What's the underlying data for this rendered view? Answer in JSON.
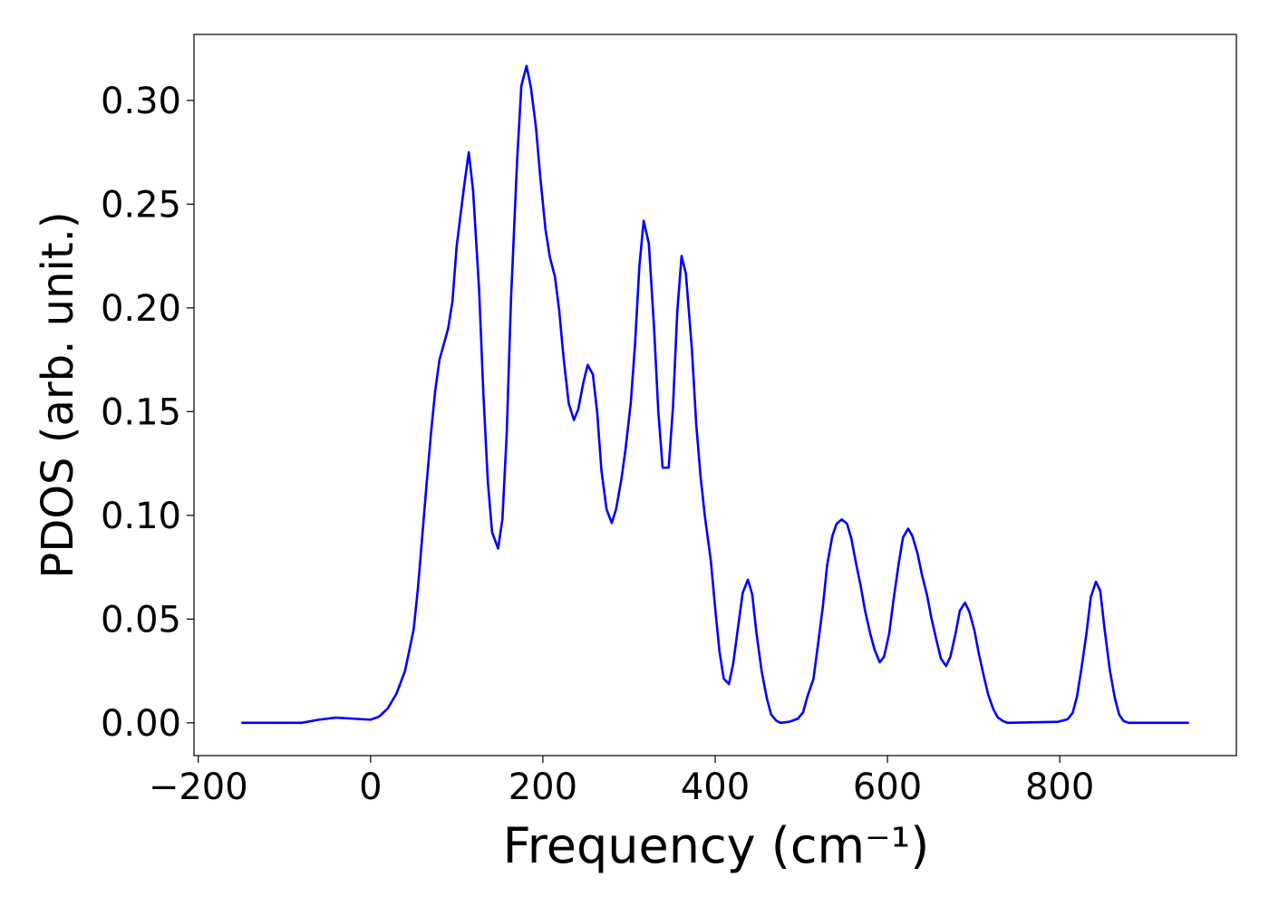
{
  "chart_data": {
    "type": "line",
    "xlabel": "Frequency (cm⁻¹)",
    "ylabel": "PDOS (arb. unit.)",
    "xlim": [
      -205,
      1005
    ],
    "ylim": [
      -0.0158,
      0.3318
    ],
    "xticks": [
      {
        "value": -200,
        "label": "−200"
      },
      0,
      200,
      400,
      600,
      800
    ],
    "yticks": [
      {
        "value": 0,
        "label": "0.00"
      },
      {
        "value": 0.05,
        "label": "0.05"
      },
      {
        "value": 0.1,
        "label": "0.10"
      },
      {
        "value": 0.15,
        "label": "0.15"
      },
      {
        "value": 0.2,
        "label": "0.20"
      },
      {
        "value": 0.25,
        "label": "0.25"
      },
      {
        "value": 0.3,
        "label": "0.30"
      }
    ],
    "grid": false,
    "series": [
      {
        "color": "#0000ff",
        "x": [
          -150,
          -80,
          -60,
          -40,
          -20,
          0,
          10,
          20,
          30,
          40,
          50,
          55,
          60,
          65,
          70,
          75,
          80,
          90,
          95,
          100,
          109,
          114,
          119,
          126,
          131,
          136,
          141,
          148,
          153,
          158,
          163,
          170,
          175,
          181,
          186,
          192,
          197,
          203,
          208,
          214,
          219,
          224,
          230,
          236,
          241,
          247,
          252,
          258,
          263,
          268,
          274,
          280,
          285,
          291,
          296,
          302,
          307,
          312,
          317,
          323,
          329,
          334,
          339,
          346,
          351,
          356,
          361,
          366,
          373,
          378,
          383,
          388,
          395,
          400,
          405,
          410,
          416,
          421,
          427,
          432,
          438,
          443,
          448,
          454,
          460,
          465,
          471,
          476,
          486,
          496,
          502,
          507,
          514,
          519,
          525,
          530,
          536,
          541,
          547,
          553,
          558,
          563,
          569,
          574,
          580,
          585,
          591,
          596,
          602,
          607,
          613,
          618,
          624,
          629,
          635,
          640,
          646,
          651,
          657,
          662,
          668,
          673,
          679,
          684,
          690,
          695,
          701,
          706,
          712,
          717,
          723,
          728,
          734,
          739,
          798,
          809,
          815,
          820,
          825,
          831,
          836,
          842,
          847,
          852,
          858,
          864,
          869,
          874,
          880,
          950
        ],
        "values": [
          0,
          0,
          0.0015,
          0.0025,
          0.002,
          0.0015,
          0.003,
          0.007,
          0.014,
          0.025,
          0.045,
          0.065,
          0.09,
          0.115,
          0.139,
          0.16,
          0.175,
          0.19,
          0.203,
          0.23,
          0.26,
          0.275,
          0.2565,
          0.2086,
          0.158,
          0.117,
          0.092,
          0.084,
          0.098,
          0.139,
          0.204,
          0.27,
          0.307,
          0.3166,
          0.3066,
          0.287,
          0.263,
          0.238,
          0.2247,
          0.215,
          0.1986,
          0.176,
          0.154,
          0.146,
          0.151,
          0.164,
          0.1725,
          0.168,
          0.15,
          0.1215,
          0.1028,
          0.0963,
          0.103,
          0.117,
          0.132,
          0.154,
          0.1825,
          0.22,
          0.242,
          0.231,
          0.191,
          0.15,
          0.123,
          0.123,
          0.152,
          0.198,
          0.225,
          0.2165,
          0.18,
          0.144,
          0.119,
          0.0997,
          0.078,
          0.0553,
          0.0344,
          0.0213,
          0.0187,
          0.0287,
          0.0475,
          0.0627,
          0.069,
          0.062,
          0.043,
          0.0248,
          0.0118,
          0.004,
          0.001,
          0,
          0.0005,
          0.002,
          0.005,
          0.0126,
          0.021,
          0.0366,
          0.056,
          0.076,
          0.09,
          0.096,
          0.098,
          0.096,
          0.089,
          0.078,
          0.0658,
          0.054,
          0.043,
          0.0353,
          0.0292,
          0.0318,
          0.043,
          0.0592,
          0.0767,
          0.0893,
          0.0936,
          0.09,
          0.0814,
          0.0714,
          0.0614,
          0.0505,
          0.0396,
          0.031,
          0.0274,
          0.0318,
          0.043,
          0.054,
          0.0579,
          0.0536,
          0.0444,
          0.0335,
          0.0222,
          0.0135,
          0.0065,
          0.0026,
          0.0009,
          0,
          0.0005,
          0.0017,
          0.0048,
          0.0126,
          0.0257,
          0.043,
          0.0605,
          0.068,
          0.0636,
          0.0453,
          0.0257,
          0.0118,
          0.0039,
          0.0009,
          0,
          0
        ]
      }
    ]
  }
}
